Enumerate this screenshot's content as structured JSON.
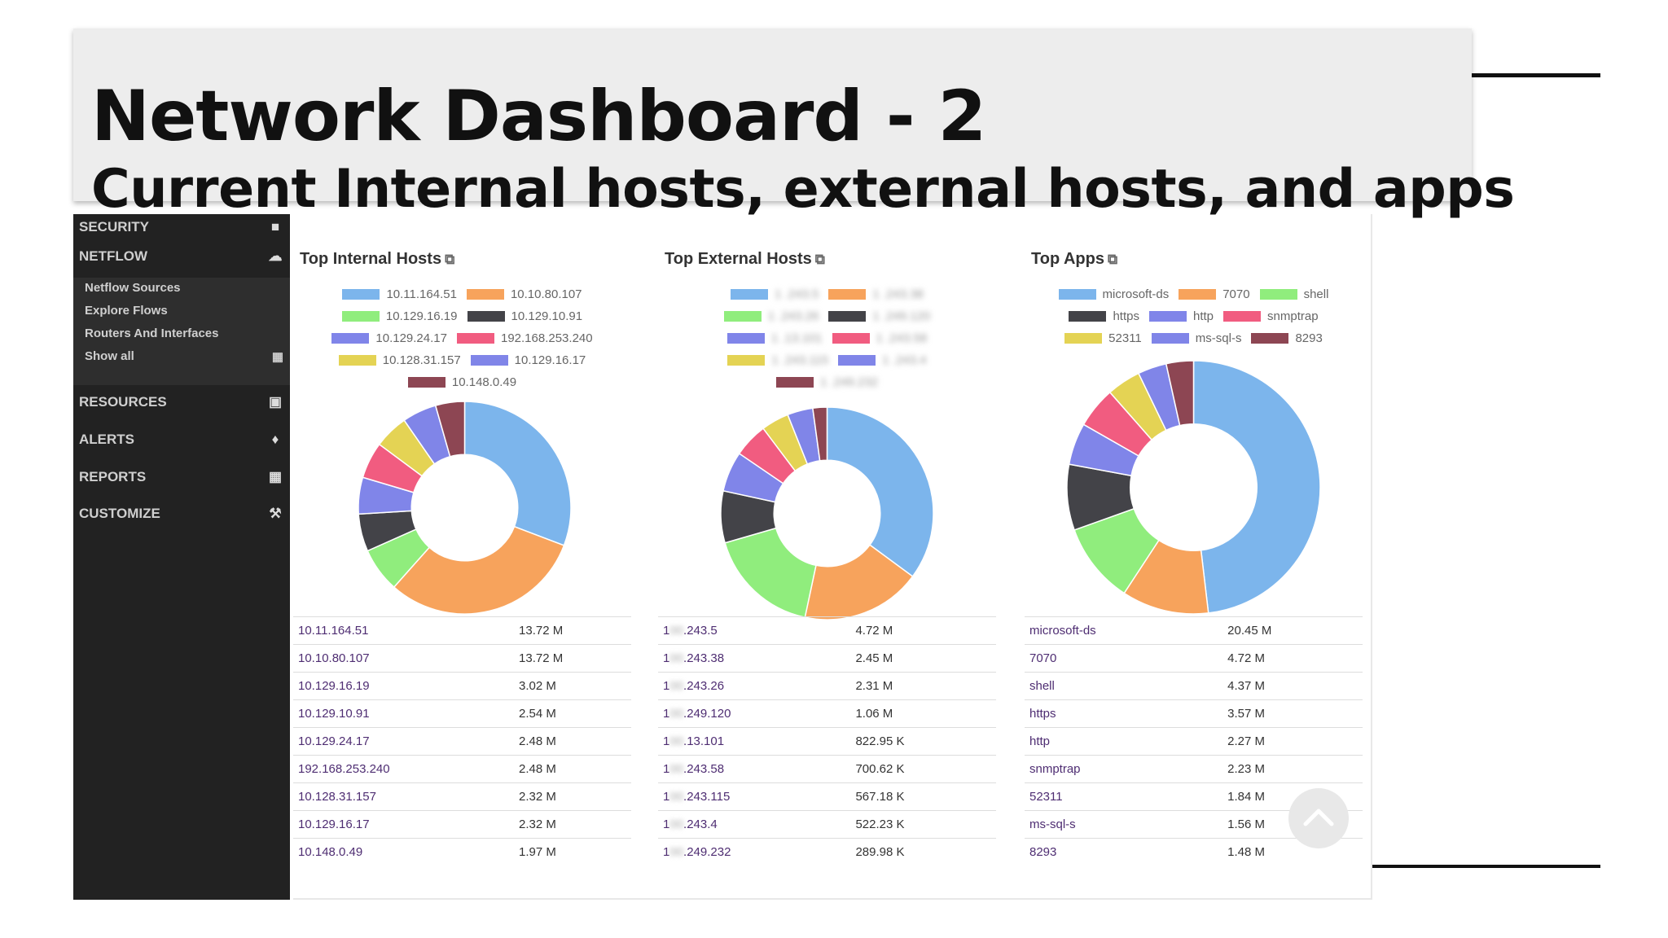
{
  "slide": {
    "title": "Network Dashboard - 2",
    "subtitle": "Current Internal hosts, external hosts, and apps"
  },
  "sidebar": {
    "items": [
      {
        "label": "SECURITY",
        "icon": "square-icon"
      },
      {
        "label": "NETFLOW",
        "icon": "cloud-icon"
      },
      {
        "label": "RESOURCES",
        "icon": "image-icon"
      },
      {
        "label": "ALERTS",
        "icon": "bell-icon"
      },
      {
        "label": "REPORTS",
        "icon": "calendar-icon"
      },
      {
        "label": "CUSTOMIZE",
        "icon": "gavel-icon"
      }
    ],
    "netflow_subitems": [
      {
        "label": "Netflow Sources"
      },
      {
        "label": "Explore Flows"
      },
      {
        "label": "Routers And Interfaces"
      },
      {
        "label": "Show all",
        "icon": "grid-icon"
      }
    ]
  },
  "colors": [
    "#7cb5ec",
    "#f7a35c",
    "#90ed7d",
    "#434348",
    "#8085e9",
    "#f15c80",
    "#e4d354",
    "#8085e8",
    "#8d4653"
  ],
  "panels": [
    {
      "title": "Top Internal Hosts",
      "chart_data": {
        "type": "pie",
        "categories": [
          "10.11.164.51",
          "10.10.80.107",
          "10.129.16.19",
          "10.129.10.91",
          "10.129.24.17",
          "192.168.253.240",
          "10.128.31.157",
          "10.129.16.17",
          "10.148.0.49"
        ],
        "values": [
          13.72,
          13.72,
          3.02,
          2.54,
          2.48,
          2.48,
          2.32,
          2.32,
          1.97
        ],
        "unit": "M"
      },
      "rows": [
        {
          "name": "10.11.164.51",
          "value": "13.72 M"
        },
        {
          "name": "10.10.80.107",
          "value": "13.72 M"
        },
        {
          "name": "10.129.16.19",
          "value": "3.02 M"
        },
        {
          "name": "10.129.10.91",
          "value": "2.54 M"
        },
        {
          "name": "10.129.24.17",
          "value": "2.48 M"
        },
        {
          "name": "192.168.253.240",
          "value": "2.48 M"
        },
        {
          "name": "10.128.31.157",
          "value": "2.32 M"
        },
        {
          "name": "10.129.16.17",
          "value": "2.32 M"
        },
        {
          "name": "10.148.0.49",
          "value": "1.97 M"
        }
      ]
    },
    {
      "title": "Top External Hosts",
      "chart_data": {
        "type": "pie",
        "categories": [
          "1 .243.5",
          "1 .243.38",
          "1 .243.26",
          "1 .249.120",
          "1 .13.101",
          "1 .243.58",
          "1 .243.115",
          "1 .243.4",
          "1 .249.232"
        ],
        "values": [
          4.72,
          2.45,
          2.31,
          1.06,
          0.82295,
          0.70062,
          0.56718,
          0.52223,
          0.28998
        ],
        "unit": "M"
      },
      "rows": [
        {
          "prefix": "1",
          "name": ".243.5",
          "value": "4.72 M"
        },
        {
          "prefix": "1",
          "name": ".243.38",
          "value": "2.45 M"
        },
        {
          "prefix": "1",
          "name": ".243.26",
          "value": "2.31 M"
        },
        {
          "prefix": "1",
          "name": ".249.120",
          "value": "1.06 M"
        },
        {
          "prefix": "1",
          "name": ".13.101",
          "value": "822.95 K"
        },
        {
          "prefix": "1",
          "name": ".243.58",
          "value": "700.62 K"
        },
        {
          "prefix": "1",
          "name": ".243.115",
          "value": "567.18 K"
        },
        {
          "prefix": "1",
          "name": ".243.4",
          "value": "522.23 K"
        },
        {
          "prefix": "1",
          "name": ".249.232",
          "value": "289.98 K"
        }
      ]
    },
    {
      "title": "Top Apps",
      "chart_data": {
        "type": "pie",
        "categories": [
          "microsoft-ds",
          "7070",
          "shell",
          "https",
          "http",
          "snmptrap",
          "52311",
          "ms-sql-s",
          "8293"
        ],
        "values": [
          20.45,
          4.72,
          4.37,
          3.57,
          2.27,
          2.23,
          1.84,
          1.56,
          1.48
        ],
        "unit": "M"
      },
      "rows": [
        {
          "name": "microsoft-ds",
          "value": "20.45 M"
        },
        {
          "name": "7070",
          "value": "4.72 M"
        },
        {
          "name": "shell",
          "value": "4.37 M"
        },
        {
          "name": "https",
          "value": "3.57 M"
        },
        {
          "name": "http",
          "value": "2.27 M"
        },
        {
          "name": "snmptrap",
          "value": "2.23 M"
        },
        {
          "name": "52311",
          "value": "1.84 M"
        },
        {
          "name": "ms-sql-s",
          "value": "1.56 M"
        },
        {
          "name": "8293",
          "value": "1.48 M"
        }
      ]
    }
  ]
}
